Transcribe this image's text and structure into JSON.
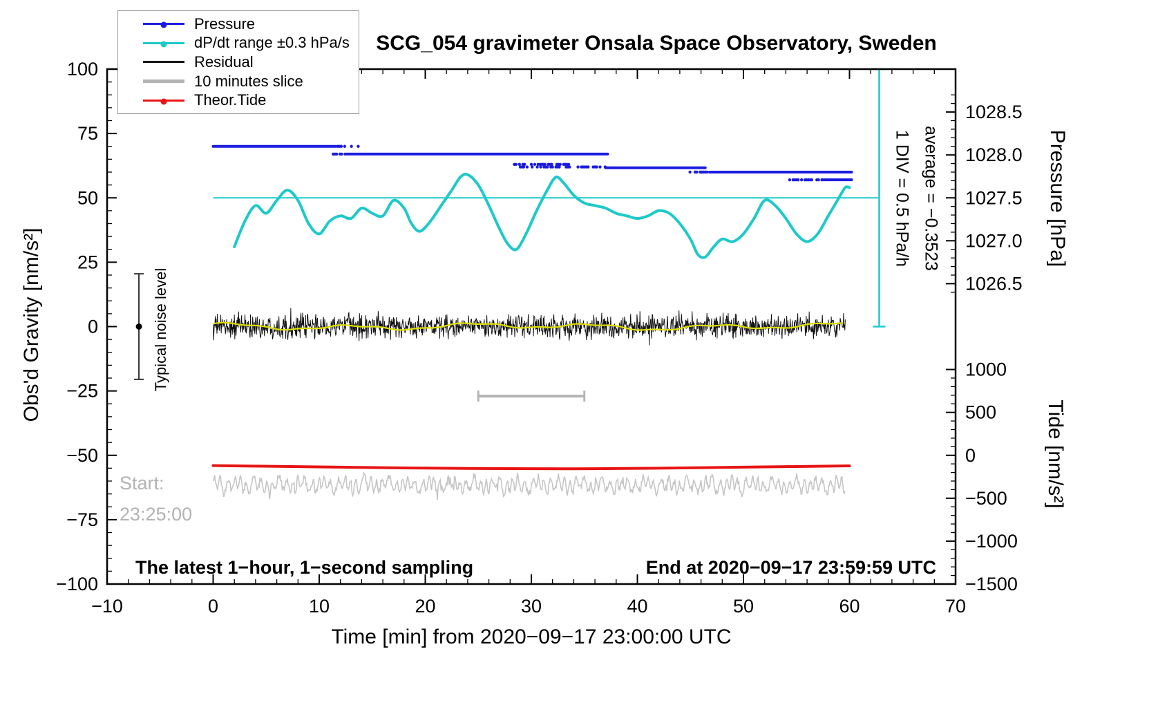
{
  "chart_data": {
    "type": "line",
    "title": "SCG_054 gravimeter Onsala Space Observatory, Sweden",
    "x_axis": {
      "label": "Time [min] from 2020−09−17 23:00:00 UTC",
      "range": [
        -10,
        70
      ],
      "major": [
        -10,
        0,
        10,
        20,
        30,
        40,
        50,
        60,
        70
      ],
      "major_labels": [
        "−10",
        "0",
        "10",
        "20",
        "30",
        "40",
        "50",
        "60",
        "70"
      ],
      "minor_step": 2
    },
    "left_axis": {
      "label": "Obs'd Gravity [nm/s²]",
      "range": [
        -100,
        100
      ],
      "major": [
        100,
        75,
        50,
        25,
        0,
        -25,
        -50,
        -75,
        -100
      ],
      "major_labels": [
        "100",
        "75",
        "50",
        "25",
        "0",
        "−25",
        "−50",
        "−75",
        "−100"
      ],
      "minor_step": 5
    },
    "pressure_axis": {
      "label": "Pressure [hPa]",
      "major": [
        1028.5,
        1028.0,
        1027.5,
        1027.0,
        1026.5
      ],
      "major_labels": [
        "1028.5",
        "1028.0",
        "1027.5",
        "1027.0",
        "1026.5"
      ],
      "minor_step": 0.1,
      "anchor_value": 1027.5,
      "anchor_gravity": 50,
      "gravity_per_unit": 33.3333
    },
    "tide_axis": {
      "label": "Tide [nm/s²]",
      "major": [
        1000,
        500,
        0,
        -500,
        -1000,
        -1500
      ],
      "major_labels": [
        "1000",
        "500",
        "0",
        "−500",
        "−1000",
        "−1500"
      ],
      "minor_step": 100,
      "anchor_value": 0,
      "anchor_gravity": -50,
      "gravity_per_unit": 0.0333333
    },
    "legend": [
      {
        "label": "Pressure",
        "color": "#1c1ce0",
        "marker": "line-dot"
      },
      {
        "label": "dP/dt range ±0.3 hPa/s",
        "color": "#1ec9c9",
        "marker": "line-dot"
      },
      {
        "label": "Residual",
        "color": "#141414",
        "marker": "line"
      },
      {
        "label": "10 minutes slice",
        "color": "#b4b4b4",
        "marker": "thick-line"
      },
      {
        "label": "Theor.Tide",
        "color": "#e81414",
        "marker": "line-dot"
      }
    ],
    "annotations": {
      "div_scale": "1 DIV = 0.5 hPa/h",
      "average": "average = −0.3523",
      "noise_label": "Typical noise level",
      "start_label": "Start:",
      "start_time": "23:25:00",
      "sampling_note": "The latest 1−hour, 1−second sampling",
      "end_note": "End at 2020−09−17 23:59:59 UTC"
    },
    "colors": {
      "pressure": "#1c1ce0",
      "dpdt": "#1ec9c9",
      "residual": "#141414",
      "smoothed": "#dede00",
      "slice": "#b4b4b4",
      "tide": "#e81414",
      "gray_trace": "#c6c6c6",
      "frame": "#000000"
    },
    "series": {
      "pressure_segments": [
        {
          "t0": 0.0,
          "t1": 11.6,
          "hpa": 1028.1,
          "style": "solid"
        },
        {
          "t0": 11.6,
          "t1": 13.8,
          "hpa": 1028.1,
          "style": "sparse"
        },
        {
          "t0": 11.0,
          "t1": 12.6,
          "hpa": 1028.01,
          "style": "sparse"
        },
        {
          "t0": 12.6,
          "t1": 37.2,
          "hpa": 1028.01,
          "style": "solid"
        },
        {
          "t0": 28.4,
          "t1": 33.6,
          "hpa": 1027.89,
          "style": "sparse"
        },
        {
          "t0": 28.8,
          "t1": 37.0,
          "hpa": 1027.86,
          "style": "sparse"
        },
        {
          "t0": 37.0,
          "t1": 46.4,
          "hpa": 1027.85,
          "style": "solid"
        },
        {
          "t0": 44.8,
          "t1": 46.8,
          "hpa": 1027.8,
          "style": "sparse"
        },
        {
          "t0": 46.8,
          "t1": 60.2,
          "hpa": 1027.8,
          "style": "solid"
        },
        {
          "t0": 54.2,
          "t1": 57.4,
          "hpa": 1027.71,
          "style": "sparse"
        },
        {
          "t0": 57.4,
          "t1": 60.2,
          "hpa": 1027.71,
          "style": "solid"
        }
      ],
      "dpdt": {
        "zero_line_gravity": 50,
        "x": [
          2,
          3,
          4,
          5,
          6,
          7,
          8,
          9,
          10,
          11,
          12,
          13,
          14,
          15,
          16,
          17,
          18,
          18.7,
          19.5,
          20.5,
          21.5,
          22.5,
          23.3,
          24,
          25,
          26,
          27,
          27.8,
          28.6,
          29.5,
          30.5,
          31.5,
          32.3,
          33,
          34,
          35,
          36,
          37,
          38,
          39,
          40,
          41,
          42,
          43,
          44,
          45,
          45.7,
          46.4,
          47.2,
          48,
          49,
          50,
          51,
          52,
          53,
          54,
          55,
          56,
          57,
          58,
          59,
          59.6,
          60
        ],
        "y": [
          31,
          41,
          47,
          44,
          49,
          53,
          49,
          40,
          36,
          41,
          43,
          42,
          46,
          44,
          43,
          49,
          46,
          40,
          37,
          41,
          47,
          53,
          58,
          59,
          55,
          47,
          38,
          32,
          30,
          36,
          45,
          53,
          58,
          56,
          51,
          48,
          47,
          46,
          44,
          43,
          42,
          43,
          45,
          44,
          40,
          34,
          28,
          27,
          31,
          34,
          33,
          36,
          42,
          49,
          47,
          42,
          36,
          33,
          36,
          43,
          50,
          54,
          54
        ]
      },
      "residual": {
        "mean": 0,
        "typical_amplitude": 4.5,
        "spike_amplitude": 9,
        "t0": 0,
        "t1": 59.6
      },
      "smoothed": {
        "amplitude": 1.4
      },
      "tide": {
        "x": [
          0,
          6,
          12,
          18,
          24,
          30,
          36,
          42,
          48,
          54,
          60
        ],
        "values": [
          -120,
          -129,
          -138,
          -147,
          -153,
          -156,
          -156,
          -150,
          -141,
          -132,
          -123
        ]
      },
      "slice_bar": {
        "t0": 25,
        "t1": 35,
        "gravity": -27
      },
      "gray_slice_trace": {
        "center_gravity": -61.5,
        "amplitude": 4,
        "t0": 0,
        "t1": 59.6
      },
      "noise_errorbar": {
        "x": -7,
        "center": 0,
        "half_range": 20.5
      },
      "div_bar": {
        "t": 62.8,
        "g0": 0,
        "g1": 100
      }
    }
  }
}
